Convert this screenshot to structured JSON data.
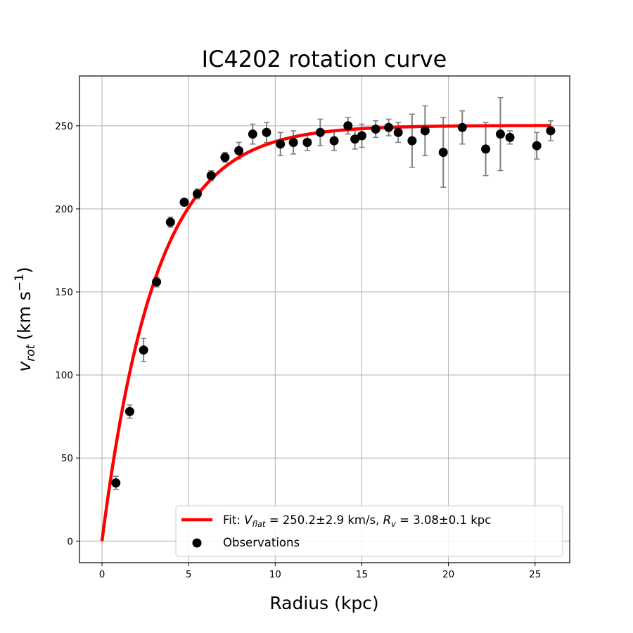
{
  "chart_data": {
    "type": "scatter",
    "title": "IC4202 rotation curve",
    "xlabel": "Radius (kpc)",
    "ylabel_main": "v",
    "ylabel_sub": "rot",
    "ylabel_unit": "(km s",
    "ylabel_exp": "−1",
    "ylabel_close": ")",
    "xlim": [
      -1.3,
      27.0
    ],
    "ylim": [
      -13,
      280
    ],
    "xticks": [
      0,
      5,
      10,
      15,
      20,
      25
    ],
    "yticks": [
      0,
      50,
      100,
      150,
      200,
      250
    ],
    "grid": true,
    "legend_position": "lower-right",
    "colors": {
      "fit": "#ff0000",
      "points": "#000000",
      "errorbars": "#808080",
      "grid": "#b0b0b0"
    },
    "fit": {
      "label_prefix": "Fit: ",
      "vflat_symbol": "V",
      "vflat_sub": "flat",
      "vflat_value": " = 250.2±2.9 km/s, ",
      "rv_symbol": "R",
      "rv_sub": "v",
      "rv_value": " = 3.08±0.1 kpc",
      "vflat": 250.2,
      "rv": 3.08,
      "x_range": [
        0,
        25.9
      ]
    },
    "observations": {
      "label": "Observations",
      "points": [
        {
          "x": 0.8,
          "y": 35,
          "err": 4
        },
        {
          "x": 1.6,
          "y": 78,
          "err": 4
        },
        {
          "x": 2.4,
          "y": 115,
          "err": 7
        },
        {
          "x": 3.15,
          "y": 156,
          "err": 3
        },
        {
          "x": 3.95,
          "y": 192,
          "err": 3
        },
        {
          "x": 4.75,
          "y": 204,
          "err": 2
        },
        {
          "x": 5.5,
          "y": 209,
          "err": 3
        },
        {
          "x": 6.3,
          "y": 220,
          "err": 3
        },
        {
          "x": 7.1,
          "y": 231,
          "err": 3
        },
        {
          "x": 7.9,
          "y": 235,
          "err": 5
        },
        {
          "x": 8.7,
          "y": 245,
          "err": 6
        },
        {
          "x": 9.5,
          "y": 246,
          "err": 6
        },
        {
          "x": 10.3,
          "y": 239,
          "err": 7
        },
        {
          "x": 11.05,
          "y": 240,
          "err": 7
        },
        {
          "x": 11.85,
          "y": 240,
          "err": 5
        },
        {
          "x": 12.6,
          "y": 246,
          "err": 8
        },
        {
          "x": 13.4,
          "y": 241,
          "err": 6
        },
        {
          "x": 14.2,
          "y": 250,
          "err": 5
        },
        {
          "x": 14.6,
          "y": 242,
          "err": 6
        },
        {
          "x": 15.0,
          "y": 244,
          "err": 7
        },
        {
          "x": 15.8,
          "y": 248,
          "err": 5
        },
        {
          "x": 16.55,
          "y": 249,
          "err": 5
        },
        {
          "x": 17.1,
          "y": 246,
          "err": 6
        },
        {
          "x": 17.9,
          "y": 241,
          "err": 16
        },
        {
          "x": 18.65,
          "y": 247,
          "err": 15
        },
        {
          "x": 19.7,
          "y": 234,
          "err": 21
        },
        {
          "x": 20.8,
          "y": 249,
          "err": 10
        },
        {
          "x": 22.15,
          "y": 236,
          "err": 16
        },
        {
          "x": 23.0,
          "y": 245,
          "err": 22
        },
        {
          "x": 23.55,
          "y": 243,
          "err": 4
        },
        {
          "x": 25.1,
          "y": 238,
          "err": 8
        },
        {
          "x": 25.9,
          "y": 247,
          "err": 6
        }
      ]
    }
  }
}
